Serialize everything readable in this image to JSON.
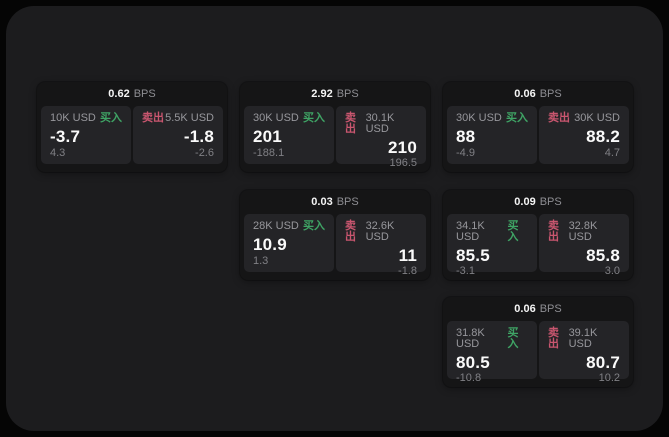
{
  "labels": {
    "bps": "BPS",
    "buy": "买入",
    "sell": "卖出"
  },
  "colors": {
    "background": "#050505",
    "surface": "#1c1c1e",
    "card": "#151516",
    "pane": "#242427",
    "buy_accent": "#3fa465",
    "sell_accent": "#c9566f"
  },
  "cards": [
    {
      "bps": "0.62",
      "buy": {
        "amount": "10K USD",
        "value": "-3.7",
        "sub": "4.3"
      },
      "sell": {
        "amount": "5.5K USD",
        "value": "-1.8",
        "sub": "-2.6"
      }
    },
    {
      "bps": "2.92",
      "buy": {
        "amount": "30K USD",
        "value": "201",
        "sub": "-188.1"
      },
      "sell": {
        "amount": "30.1K USD",
        "value": "210",
        "sub": "196.5"
      }
    },
    {
      "bps": "0.06",
      "buy": {
        "amount": "30K USD",
        "value": "88",
        "sub": "-4.9"
      },
      "sell": {
        "amount": "30K USD",
        "value": "88.2",
        "sub": "4.7"
      }
    },
    {
      "bps": "0.03",
      "buy": {
        "amount": "28K USD",
        "value": "10.9",
        "sub": "1.3"
      },
      "sell": {
        "amount": "32.6K USD",
        "value": "11",
        "sub": "-1.8"
      }
    },
    {
      "bps": "0.09",
      "buy": {
        "amount": "34.1K USD",
        "value": "85.5",
        "sub": "-3.1"
      },
      "sell": {
        "amount": "32.8K USD",
        "value": "85.8",
        "sub": "3.0"
      }
    },
    {
      "bps": "0.06",
      "buy": {
        "amount": "31.8K USD",
        "value": "80.5",
        "sub": "-10.8"
      },
      "sell": {
        "amount": "39.1K USD",
        "value": "80.7",
        "sub": "10.2"
      }
    }
  ]
}
